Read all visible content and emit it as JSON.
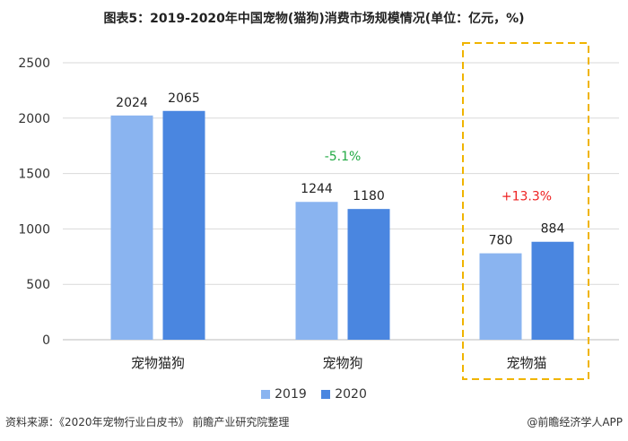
{
  "title": "图表5：2019-2020年中国宠物(猫狗)消费市场规模情况(单位：亿元，%)",
  "chart_data": {
    "type": "bar",
    "title": "图表5：2019-2020年中国宠物(猫狗)消费市场规模情况(单位：亿元，%)",
    "categories": [
      "宠物猫狗",
      "宠物狗",
      "宠物猫"
    ],
    "series": [
      {
        "name": "2019",
        "values": [
          2024,
          1244,
          780
        ],
        "color": "#8ab4f0"
      },
      {
        "name": "2020",
        "values": [
          2065,
          1180,
          884
        ],
        "color": "#4a86e0"
      }
    ],
    "ylim": [
      0,
      2500
    ],
    "yticks": [
      0,
      500,
      1000,
      1500,
      2000,
      2500
    ],
    "grid": true,
    "legend": "bottom",
    "annotations": [
      {
        "category": "宠物狗",
        "text": "-5.1%",
        "color": "#22aa44"
      },
      {
        "category": "宠物猫",
        "text": "+13.3%",
        "color": "#ee2222"
      }
    ],
    "highlight": {
      "category": "宠物猫",
      "style": "dashed-box",
      "color": "#f0b400"
    }
  },
  "legend": [
    "2019",
    "2020"
  ],
  "footer": {
    "source": "资料来源：《2020年宠物行业白皮书》 前瞻产业研究院整理",
    "credit": "@前瞻经济学人APP"
  }
}
